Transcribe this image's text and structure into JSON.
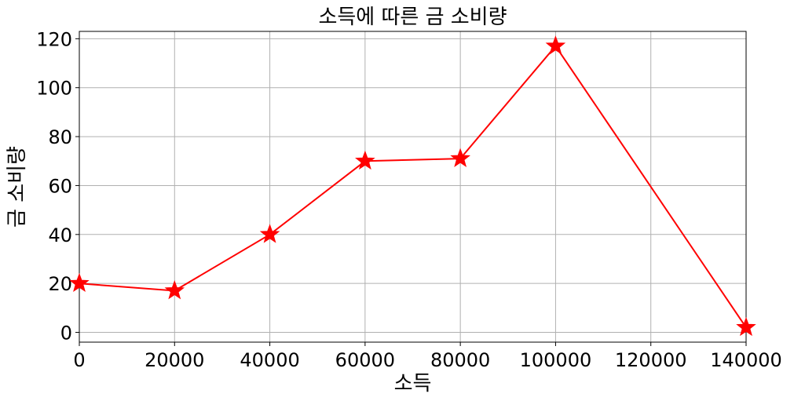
{
  "chart_data": {
    "type": "line",
    "title": "소득에 따른 금 소비량",
    "xlabel": "소득",
    "ylabel": "금 소비량",
    "x": [
      0,
      20000,
      40000,
      60000,
      80000,
      100000,
      140000
    ],
    "series": [
      {
        "values": [
          20,
          17,
          40,
          70,
          71,
          117,
          2
        ],
        "color": "#ff0000",
        "marker": "star"
      }
    ],
    "xlim": [
      0,
      140000
    ],
    "ylim": [
      -4,
      123
    ],
    "xticks": [
      "0",
      "20000",
      "40000",
      "60000",
      "80000",
      "100000",
      "120000",
      "140000"
    ],
    "yticks": [
      "0",
      "20",
      "40",
      "60",
      "80",
      "100",
      "120"
    ],
    "grid": true
  }
}
